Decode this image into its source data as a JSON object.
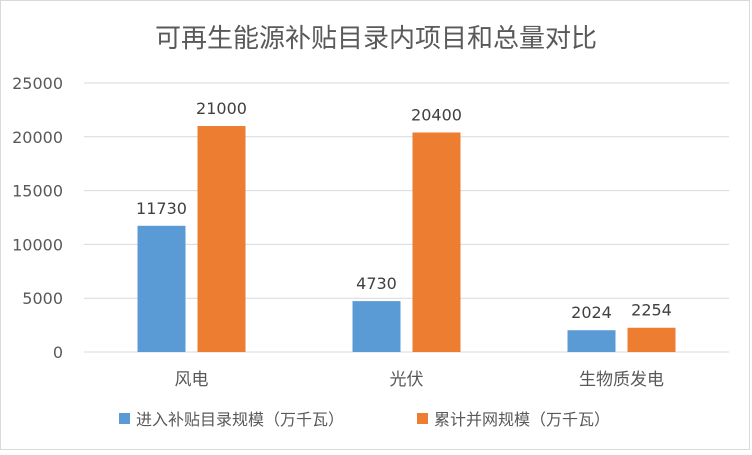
{
  "chart_data": {
    "type": "bar",
    "title": "可再生能源补贴目录内项目和总量对比",
    "categories": [
      "风电",
      "光伏",
      "生物质发电"
    ],
    "series": [
      {
        "name": "进入补贴目录规模（万千瓦）",
        "color": "#5b9bd5",
        "values": [
          11730,
          4730,
          2024
        ]
      },
      {
        "name": "累计并网规模（万千瓦）",
        "color": "#ed7d31",
        "values": [
          21000,
          20400,
          2254
        ]
      }
    ],
    "ylim": [
      0,
      25000
    ],
    "yticks": [
      0,
      5000,
      10000,
      15000,
      20000,
      25000
    ],
    "grid": true,
    "legend_position": "bottom",
    "data_labels": true,
    "xlabel": "",
    "ylabel": ""
  }
}
